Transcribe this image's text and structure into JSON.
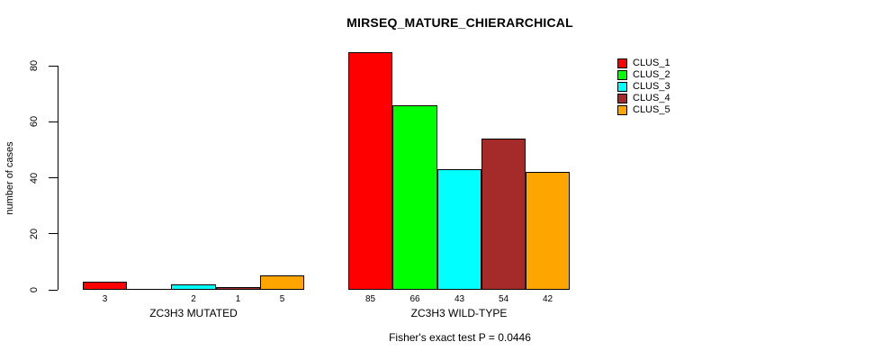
{
  "title": "MIRSEQ_MATURE_CHIERARCHICAL",
  "annotation": "Fisher's exact test P = 0.0446",
  "chart_data": {
    "type": "bar",
    "title": "MIRSEQ_MATURE_CHIERARCHICAL",
    "xlabel": "",
    "ylabel": "number of cases",
    "ylim": [
      0,
      80
    ],
    "yticks": [
      0,
      20,
      40,
      60,
      80
    ],
    "grid": false,
    "legend_position": "right",
    "categories": [
      "ZC3H3 MUTATED",
      "ZC3H3 WILD-TYPE"
    ],
    "series": [
      {
        "name": "CLUS_1",
        "color": "#FF0000",
        "values": [
          3,
          85
        ]
      },
      {
        "name": "CLUS_2",
        "color": "#00FF00",
        "values": [
          0,
          66
        ]
      },
      {
        "name": "CLUS_3",
        "color": "#00FFFF",
        "values": [
          2,
          43
        ]
      },
      {
        "name": "CLUS_4",
        "color": "#A52A2A",
        "values": [
          1,
          54
        ]
      },
      {
        "name": "CLUS_5",
        "color": "#FFA500",
        "values": [
          5,
          42
        ]
      }
    ],
    "bar_labels": [
      [
        "3",
        "",
        "2",
        "1",
        "5"
      ],
      [
        "85",
        "66",
        "43",
        "54",
        "42"
      ]
    ],
    "annotation": "Fisher's exact test P = 0.0446"
  }
}
